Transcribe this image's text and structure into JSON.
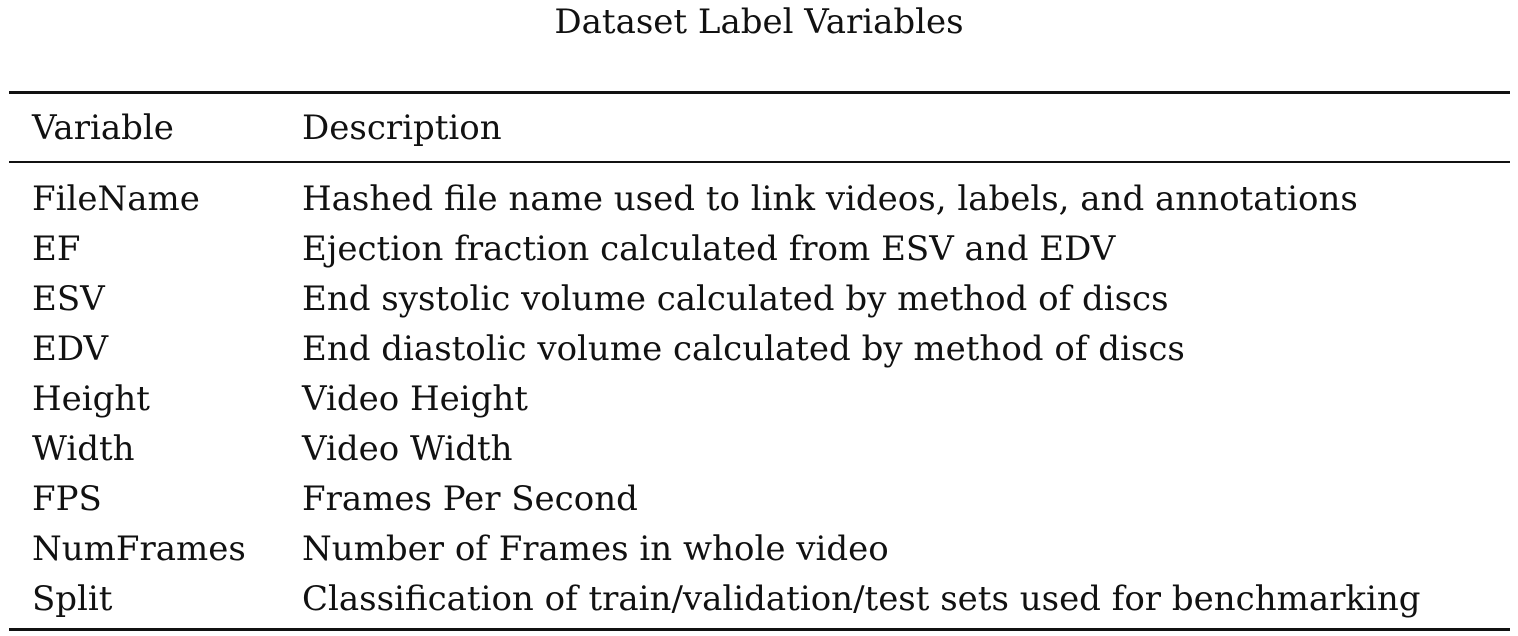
{
  "caption": "Dataset Label Variables",
  "table": {
    "columns": [
      "Variable",
      "Description"
    ],
    "rows": [
      {
        "variable": "FileName",
        "description": "Hashed file name used to link videos, labels, and annotations"
      },
      {
        "variable": "EF",
        "description": "Ejection fraction calculated from ESV and EDV"
      },
      {
        "variable": "ESV",
        "description": "End systolic volume calculated by method of discs"
      },
      {
        "variable": "EDV",
        "description": "End diastolic volume calculated by method of discs"
      },
      {
        "variable": "Height",
        "description": "Video Height"
      },
      {
        "variable": "Width",
        "description": "Video Width"
      },
      {
        "variable": "FPS",
        "description": "Frames Per Second"
      },
      {
        "variable": "NumFrames",
        "description": "Number of Frames in whole video"
      },
      {
        "variable": "Split",
        "description": "Classification of train/validation/test sets used for benchmarking"
      }
    ]
  }
}
